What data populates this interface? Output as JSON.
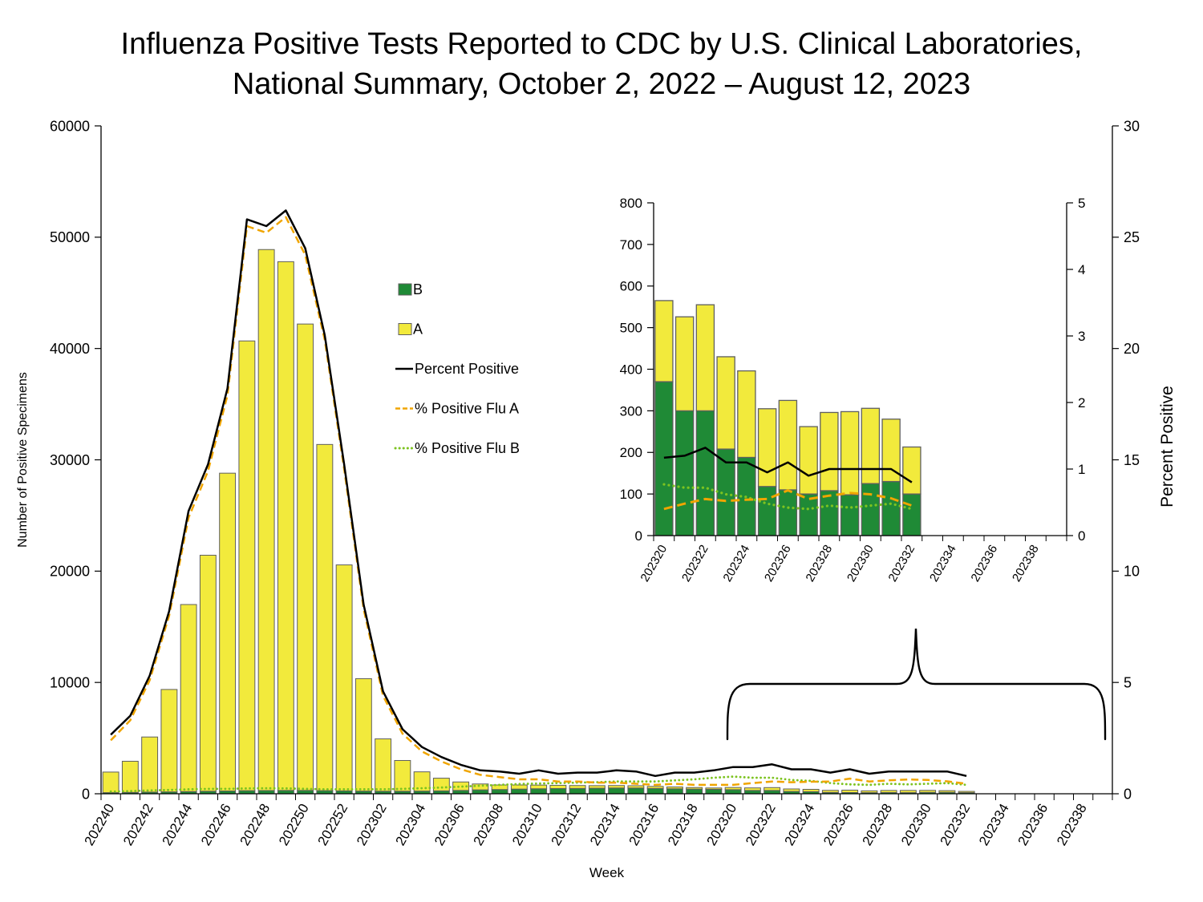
{
  "title_line1": "Influenza Positive Tests Reported to CDC by U.S. Clinical Laboratories,",
  "title_line2": "National Summary, October 2, 2022 – August 12, 2023",
  "colors": {
    "flu_a": "#f2ea3c",
    "flu_b": "#1f8a36",
    "bar_stroke": "#5f5f5f",
    "pct_line": "#000000",
    "pct_a": "#f0a500",
    "pct_b": "#7dc320",
    "brace": "#000000"
  },
  "chart_data": [
    {
      "type": "bar",
      "stacked": true,
      "xlabel": "Week",
      "ylabel": "Number of Positive Specimens",
      "y2label": "Percent Positive",
      "ylim": [
        0,
        60000
      ],
      "yticks": [
        0,
        10000,
        20000,
        30000,
        40000,
        50000,
        60000
      ],
      "y2lim": [
        0,
        30
      ],
      "y2ticks": [
        0,
        5,
        10,
        15,
        20,
        25,
        30
      ],
      "categories": [
        "202240",
        "202241",
        "202242",
        "202243",
        "202244",
        "202245",
        "202246",
        "202247",
        "202248",
        "202249",
        "202250",
        "202251",
        "202252",
        "202301",
        "202302",
        "202303",
        "202304",
        "202305",
        "202306",
        "202307",
        "202308",
        "202309",
        "202310",
        "202311",
        "202312",
        "202313",
        "202314",
        "202315",
        "202316",
        "202317",
        "202318",
        "202319",
        "202320",
        "202321",
        "202322",
        "202323",
        "202324",
        "202325",
        "202326",
        "202327",
        "202328",
        "202329",
        "202330",
        "202331",
        "202332",
        "202333",
        "202334",
        "202335",
        "202336",
        "202337",
        "202338",
        "202339"
      ],
      "tick_labels": [
        "202240",
        "202242",
        "202244",
        "202246",
        "202248",
        "202250",
        "202252",
        "202302",
        "202304",
        "202306",
        "202308",
        "202310",
        "202312",
        "202314",
        "202316",
        "202318",
        "202320",
        "202322",
        "202324",
        "202326",
        "202328",
        "202330",
        "202332",
        "202334",
        "202336",
        "202338"
      ],
      "legend": {
        "placement": "center-left",
        "entries": [
          {
            "label": "B",
            "kind": "box",
            "color_key": "flu_b"
          },
          {
            "label": "A",
            "kind": "box",
            "color_key": "flu_a"
          },
          {
            "label": "Percent Positive",
            "kind": "solid",
            "color_key": "pct_line"
          },
          {
            "label": "% Positive Flu A",
            "kind": "dashed",
            "color_key": "pct_a"
          },
          {
            "label": "% Positive Flu B",
            "kind": "dotted",
            "color_key": "pct_b"
          }
        ]
      },
      "series": [
        {
          "name": "B",
          "axis": "left",
          "kind": "bar",
          "values": [
            100,
            120,
            150,
            170,
            200,
            230,
            250,
            280,
            290,
            300,
            300,
            280,
            260,
            240,
            230,
            230,
            240,
            260,
            300,
            350,
            380,
            420,
            450,
            470,
            480,
            500,
            520,
            520,
            480,
            450,
            420,
            400,
            370,
            300,
            300,
            210,
            190,
            120,
            110,
            100,
            110,
            100,
            125,
            130,
            100,
            null,
            null,
            null,
            null,
            null,
            null,
            null
          ]
        },
        {
          "name": "A",
          "axis": "left",
          "kind": "bar",
          "values": [
            1850,
            2800,
            4950,
            9200,
            16800,
            21200,
            28550,
            40400,
            48600,
            47500,
            41900,
            31100,
            20300,
            10100,
            4700,
            2760,
            1730,
            1140,
            760,
            530,
            410,
            370,
            330,
            290,
            260,
            230,
            220,
            200,
            180,
            160,
            140,
            120,
            195,
            226,
            255,
            222,
            208,
            187,
            215,
            162,
            188,
            200,
            181,
            150,
            113,
            null,
            null,
            null,
            null,
            null,
            null,
            null
          ]
        },
        {
          "name": "Percent Positive",
          "axis": "right",
          "kind": "line",
          "style": "solid",
          "values": [
            2.65,
            3.5,
            5.3,
            8.2,
            12.7,
            14.8,
            18.2,
            25.8,
            25.5,
            26.2,
            24.5,
            20.6,
            14.8,
            8.5,
            4.6,
            2.9,
            2.1,
            1.65,
            1.3,
            1.05,
            1.0,
            0.9,
            1.05,
            0.9,
            0.95,
            0.95,
            1.05,
            1.0,
            0.8,
            0.95,
            0.95,
            1.05,
            1.2,
            1.2,
            1.32,
            1.1,
            1.1,
            0.95,
            1.1,
            0.9,
            1.0,
            1.0,
            1.0,
            1.0,
            0.8,
            null,
            null,
            null,
            null,
            null,
            null,
            null
          ]
        },
        {
          "name": "% Positive Flu A",
          "axis": "right",
          "kind": "line",
          "style": "dashed",
          "values": [
            2.4,
            3.3,
            5.1,
            8.0,
            12.4,
            14.5,
            17.9,
            25.5,
            25.2,
            25.9,
            24.2,
            20.4,
            14.6,
            8.3,
            4.4,
            2.7,
            1.9,
            1.45,
            1.1,
            0.85,
            0.75,
            0.65,
            0.65,
            0.55,
            0.55,
            0.5,
            0.5,
            0.45,
            0.4,
            0.45,
            0.4,
            0.4,
            0.4,
            0.48,
            0.55,
            0.52,
            0.54,
            0.55,
            0.68,
            0.55,
            0.6,
            0.64,
            0.62,
            0.56,
            0.45,
            null,
            null,
            null,
            null,
            null,
            null,
            null
          ]
        },
        {
          "name": "% Positive Flu B",
          "axis": "right",
          "kind": "line",
          "style": "dotted",
          "values": [
            0.1,
            0.12,
            0.15,
            0.17,
            0.2,
            0.22,
            0.22,
            0.24,
            0.25,
            0.24,
            0.22,
            0.2,
            0.2,
            0.2,
            0.2,
            0.22,
            0.25,
            0.28,
            0.32,
            0.36,
            0.4,
            0.44,
            0.46,
            0.48,
            0.5,
            0.52,
            0.55,
            0.55,
            0.55,
            0.6,
            0.65,
            0.72,
            0.77,
            0.72,
            0.72,
            0.62,
            0.58,
            0.48,
            0.42,
            0.4,
            0.45,
            0.42,
            0.45,
            0.48,
            0.4,
            null,
            null,
            null,
            null,
            null,
            null,
            null
          ]
        }
      ]
    },
    {
      "type": "bar",
      "stacked": true,
      "inset": true,
      "ylim": [
        0,
        800
      ],
      "yticks": [
        0,
        100,
        200,
        300,
        400,
        500,
        600,
        700,
        800
      ],
      "y2lim": [
        0,
        5
      ],
      "y2ticks": [
        0,
        1,
        2,
        3,
        4,
        5
      ],
      "categories": [
        "202320",
        "202321",
        "202322",
        "202323",
        "202324",
        "202325",
        "202326",
        "202327",
        "202328",
        "202329",
        "202330",
        "202331",
        "202332",
        "202333",
        "202334",
        "202335",
        "202336",
        "202337",
        "202338",
        "202339"
      ],
      "tick_labels": [
        "202320",
        "202322",
        "202324",
        "202326",
        "202328",
        "202330",
        "202332",
        "202334",
        "202336",
        "202338"
      ],
      "series": [
        {
          "name": "B",
          "axis": "left",
          "kind": "bar",
          "values": [
            370,
            300,
            300,
            208,
            188,
            118,
            110,
            100,
            108,
            98,
            125,
            130,
            100,
            null,
            null,
            null,
            null,
            null,
            null,
            null
          ]
        },
        {
          "name": "A",
          "axis": "left",
          "kind": "bar",
          "values": [
            195,
            226,
            255,
            222,
            208,
            187,
            215,
            162,
            188,
            200,
            181,
            150,
            113,
            null,
            null,
            null,
            null,
            null,
            null,
            null
          ]
        },
        {
          "name": "Percent Positive",
          "axis": "right",
          "kind": "line",
          "style": "solid",
          "values": [
            1.17,
            1.2,
            1.32,
            1.1,
            1.1,
            0.95,
            1.1,
            0.9,
            1.0,
            1.0,
            1.0,
            1.0,
            0.8,
            null,
            null,
            null,
            null,
            null,
            null,
            null
          ]
        },
        {
          "name": "% Positive Flu A",
          "axis": "right",
          "kind": "line",
          "style": "dashed",
          "values": [
            0.4,
            0.48,
            0.55,
            0.52,
            0.54,
            0.55,
            0.68,
            0.55,
            0.6,
            0.64,
            0.62,
            0.56,
            0.45,
            null,
            null,
            null,
            null,
            null,
            null,
            null
          ]
        },
        {
          "name": "% Positive Flu B",
          "axis": "right",
          "kind": "line",
          "style": "dotted",
          "values": [
            0.77,
            0.72,
            0.72,
            0.62,
            0.58,
            0.48,
            0.42,
            0.4,
            0.45,
            0.42,
            0.45,
            0.48,
            0.4,
            null,
            null,
            null,
            null,
            null,
            null,
            null
          ]
        }
      ]
    }
  ]
}
